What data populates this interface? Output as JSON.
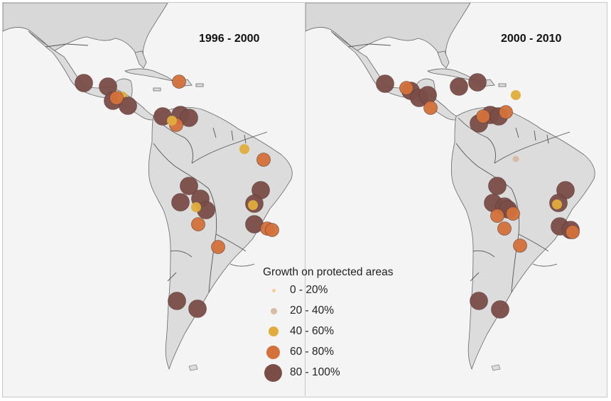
{
  "panels": [
    {
      "title": "1996 - 2000"
    },
    {
      "title": "2000 - 2010"
    }
  ],
  "legend": {
    "title": "Growth on protected areas",
    "items": [
      {
        "label": "0 - 20%",
        "color": "#efcf94"
      },
      {
        "label": "20 - 40%",
        "color": "#d6bba5"
      },
      {
        "label": "40 - 60%",
        "color": "#e0ad3c"
      },
      {
        "label": "60 - 80%",
        "color": "#d4713a"
      },
      {
        "label": "80 - 100%",
        "color": "#7b4d47"
      }
    ]
  },
  "colors": {
    "land": "#dcdcdc",
    "north_america": "#d8d8d8",
    "ocean": "#f4f4f4",
    "border": "#555555"
  }
}
